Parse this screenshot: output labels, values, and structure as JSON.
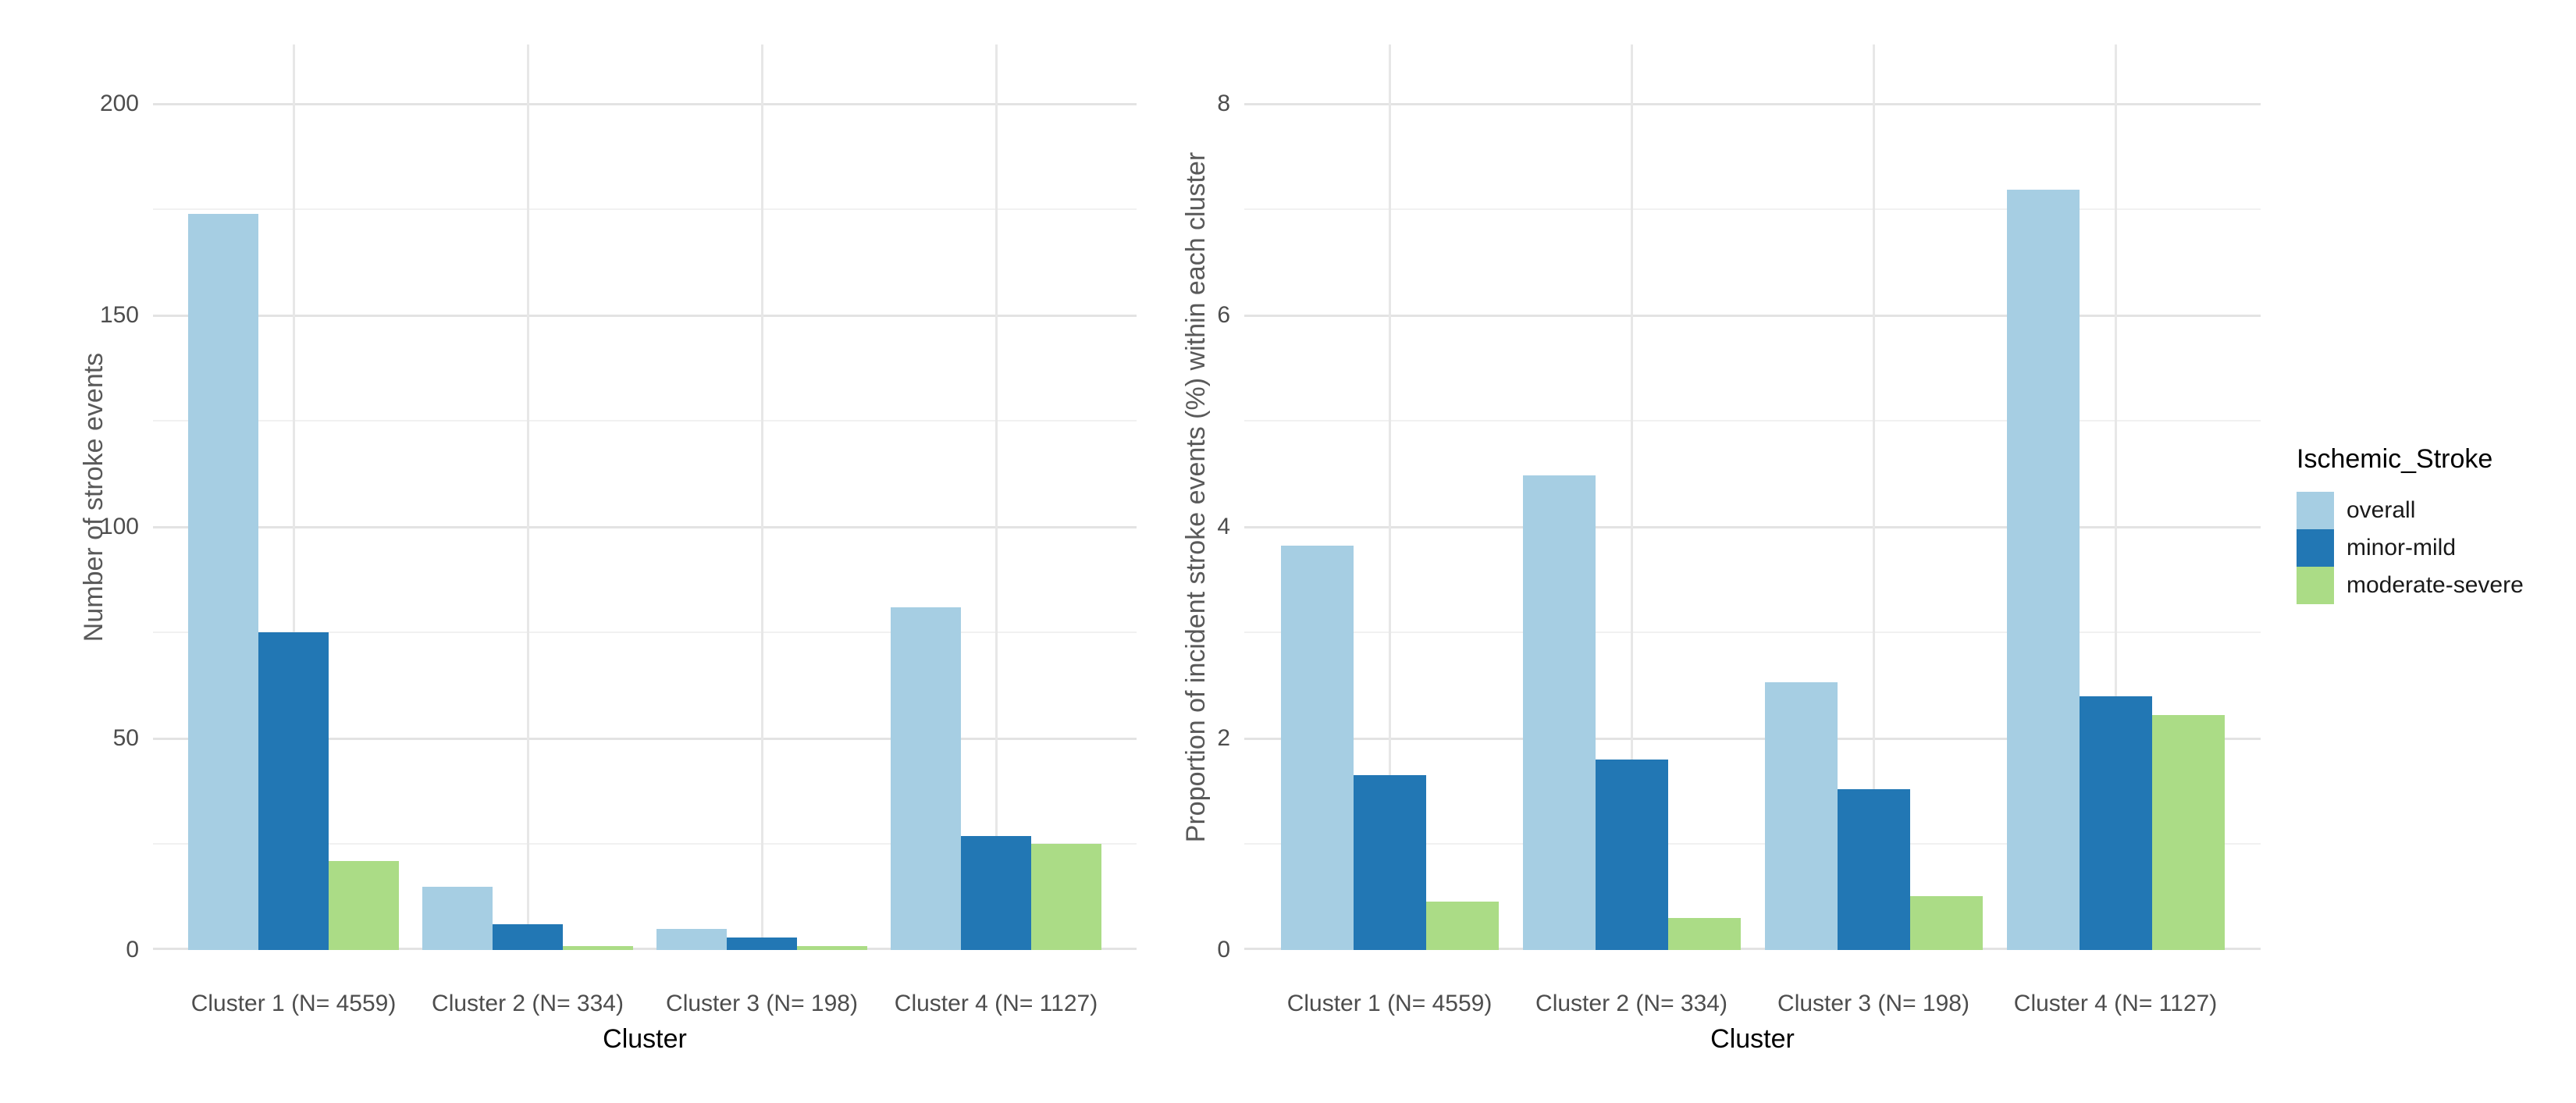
{
  "legend": {
    "title": "Ischemic_Stroke",
    "position": "right",
    "items": [
      {
        "label": "overall",
        "color": "#A6CEE3"
      },
      {
        "label": "minor-mild",
        "color": "#2277B4"
      },
      {
        "label": "moderate-severe",
        "color": "#ABDC86"
      }
    ]
  },
  "chart_data": [
    {
      "type": "bar",
      "panel": "left",
      "title": "",
      "xlabel": "Cluster",
      "ylabel": "Number of stroke events",
      "categories": [
        "Cluster 1 (N= 4559)",
        "Cluster 2 (N= 334)",
        "Cluster 3 (N= 198)",
        "Cluster 4 (N= 1127)"
      ],
      "series": [
        {
          "name": "overall",
          "color": "#A6CEE3",
          "values": [
            174,
            15,
            5,
            81
          ]
        },
        {
          "name": "minor-mild",
          "color": "#2277B4",
          "values": [
            75,
            6,
            3,
            27
          ]
        },
        {
          "name": "moderate-severe",
          "color": "#ABDC86",
          "values": [
            21,
            1,
            1,
            25
          ]
        }
      ],
      "ylim": [
        0,
        214
      ],
      "yticks": [
        0,
        50,
        100,
        150,
        200
      ],
      "yticks_minor": [
        25,
        75,
        125,
        175
      ],
      "grid": true,
      "legend_position": "shared-right"
    },
    {
      "type": "bar",
      "panel": "right",
      "title": "",
      "xlabel": "Cluster",
      "ylabel": "Proportion of incident stroke events (%) within each cluster",
      "categories": [
        "Cluster 1 (N= 4559)",
        "Cluster 2 (N= 334)",
        "Cluster 3 (N= 198)",
        "Cluster 4 (N= 1127)"
      ],
      "series": [
        {
          "name": "overall",
          "color": "#A6CEE3",
          "values": [
            3.82,
            4.49,
            2.53,
            7.19
          ]
        },
        {
          "name": "minor-mild",
          "color": "#2277B4",
          "values": [
            1.65,
            1.8,
            1.52,
            2.4
          ]
        },
        {
          "name": "moderate-severe",
          "color": "#ABDC86",
          "values": [
            0.46,
            0.3,
            0.51,
            2.22
          ]
        }
      ],
      "ylim": [
        0,
        8.56
      ],
      "yticks": [
        0,
        2,
        4,
        6,
        8
      ],
      "yticks_minor": [
        1,
        3,
        5,
        7
      ],
      "grid": true,
      "legend_position": "shared-right"
    }
  ]
}
